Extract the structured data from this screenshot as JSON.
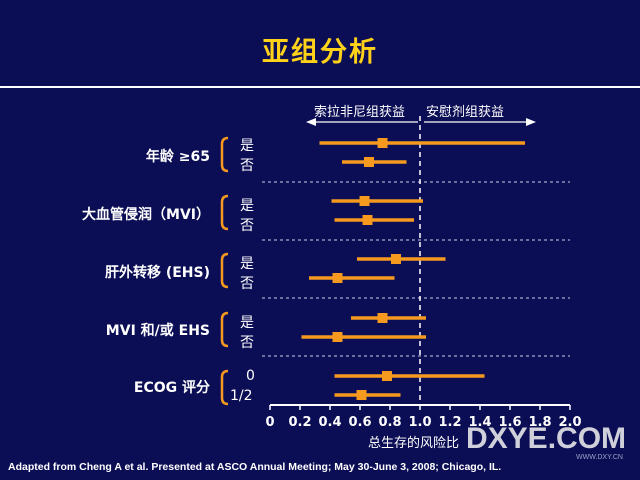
{
  "slide": {
    "title": "亚组分析",
    "footer": "Adapted from Cheng A et al. Presented at ASCO Annual Meeting; May 30-June 3, 2008; Chicago, IL.",
    "watermark": "DXYE.COM",
    "watermark_url": "WWW.DXY.CN"
  },
  "colors": {
    "background": "#0b0d55",
    "title": "#ffd21a",
    "marker": "#f59a1f",
    "bracket": "#f59a1f",
    "text": "#ffffff"
  },
  "chart_data": {
    "type": "forest",
    "xlabel": "总生存的风险比",
    "xlim": [
      0,
      2.0
    ],
    "xticks": [
      "0",
      "0.2",
      "0.4",
      "0.6",
      "0.8",
      "1.0",
      "1.2",
      "1.4",
      "1.6",
      "1.8",
      "2.0"
    ],
    "reference_line": 1.0,
    "left_arrow_label": "索拉非尼组获益",
    "right_arrow_label": "安慰剂组获益",
    "groups": [
      {
        "label": "年龄 ≥65",
        "rows": [
          {
            "label": "是",
            "hr": 0.75,
            "lo": 0.33,
            "hi": 1.7
          },
          {
            "label": "否",
            "hr": 0.66,
            "lo": 0.48,
            "hi": 0.91
          }
        ]
      },
      {
        "label": "大血管侵润（MVI）",
        "rows": [
          {
            "label": "是",
            "hr": 0.63,
            "lo": 0.41,
            "hi": 1.02
          },
          {
            "label": "否",
            "hr": 0.65,
            "lo": 0.43,
            "hi": 0.96
          }
        ]
      },
      {
        "label": "肝外转移 (EHS)",
        "rows": [
          {
            "label": "是",
            "hr": 0.84,
            "lo": 0.58,
            "hi": 1.17
          },
          {
            "label": "否",
            "hr": 0.45,
            "lo": 0.26,
            "hi": 0.83
          }
        ]
      },
      {
        "label": "MVI 和/或 EHS",
        "rows": [
          {
            "label": "是",
            "hr": 0.75,
            "lo": 0.54,
            "hi": 1.04
          },
          {
            "label": "否",
            "hr": 0.45,
            "lo": 0.21,
            "hi": 1.04
          }
        ]
      },
      {
        "label": "ECOG 评分",
        "rows": [
          {
            "label": "0",
            "hr": 0.78,
            "lo": 0.43,
            "hi": 1.43
          },
          {
            "label": "1/2",
            "hr": 0.61,
            "lo": 0.43,
            "hi": 0.87
          }
        ]
      }
    ]
  }
}
